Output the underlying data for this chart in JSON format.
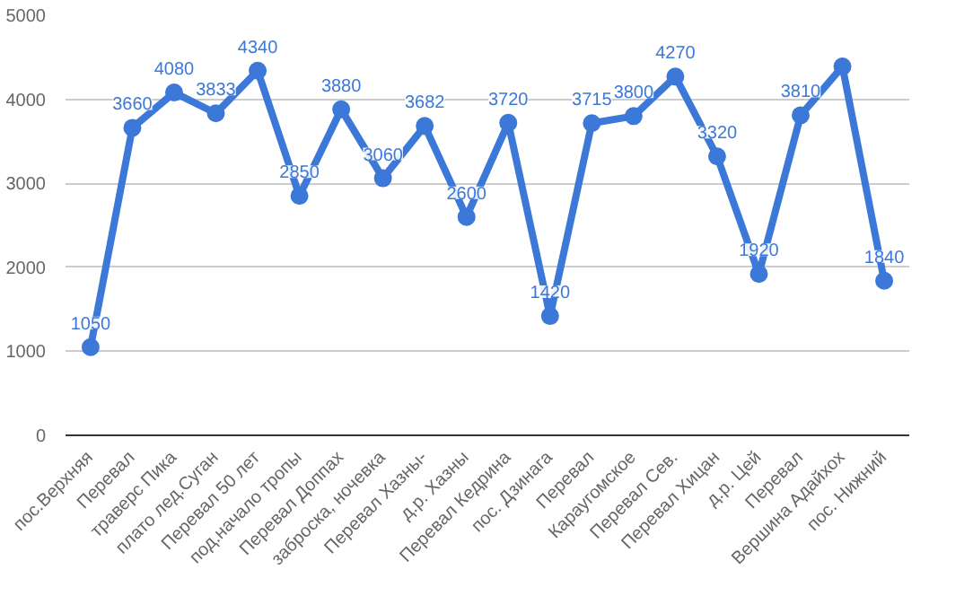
{
  "chart_data": {
    "type": "line",
    "categories": [
      "пос.Верхняя",
      "Перевал",
      "траверс Пика",
      "плато лед.Суган",
      "Перевал 50 лет",
      "под.начало тропы",
      "Перевал Доппах",
      "заброска, ночевка",
      "Перевал Хазны-",
      "д.р. Хазны",
      "Перевал Кедрина",
      "пос. Дзинага",
      "Перевал",
      "Караугомское",
      "Перевал Сев.",
      "Перевал Хицан",
      "д.р. Цей",
      "Перевал",
      "Вершина Адайхох",
      "пос. Нижний"
    ],
    "series": [
      {
        "color": "#3c78d8",
        "values": [
          1050,
          3660,
          4080,
          3833,
          4340,
          2850,
          3880,
          3060,
          3682,
          2600,
          3720,
          1420,
          3715,
          3800,
          4270,
          3320,
          1920,
          3810,
          4390,
          1840
        ],
        "value_labels": [
          "1050",
          "3660",
          "4080",
          "3833",
          "4340",
          "2850",
          "3880",
          "3060",
          "3682",
          "2600",
          "3720",
          "1420",
          "3715",
          "3800",
          "4270",
          "3320",
          "1920",
          "3810",
          null,
          "1840"
        ]
      }
    ],
    "ylim": [
      0,
      5000
    ],
    "yticks": [
      0,
      1000,
      2000,
      3000,
      4000,
      5000
    ],
    "grid": "y",
    "marker": "circle",
    "line_style": "solid"
  }
}
